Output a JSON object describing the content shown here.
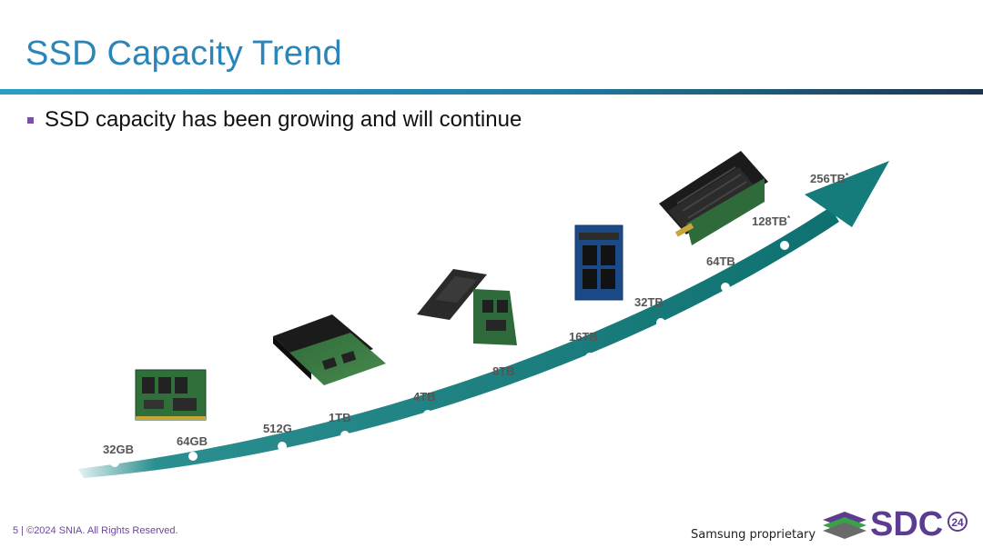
{
  "slide": {
    "title": "SSD Capacity Trend",
    "bullet": "SSD capacity has been growing and will continue"
  },
  "trend": {
    "milestones": [
      {
        "label": "32GB",
        "future": false
      },
      {
        "label": "64GB",
        "future": false
      },
      {
        "label": "512G",
        "future": false
      },
      {
        "label": "1TB",
        "future": false
      },
      {
        "label": "4TB",
        "future": false
      },
      {
        "label": "8TB",
        "future": false
      },
      {
        "label": "16TB",
        "future": false
      },
      {
        "label": "32TB",
        "future": false
      },
      {
        "label": "64TB",
        "future": false
      },
      {
        "label": "128TB",
        "future": true
      },
      {
        "label": "256TB",
        "future": true
      }
    ],
    "future_marker": "*"
  },
  "footer": {
    "copyright": "5 | ©2024 SNIA. All Rights Reserved.",
    "proprietary": "Samsung proprietary",
    "logo_text": "SDC",
    "logo_year": "24"
  },
  "colors": {
    "title": "#2a86b8",
    "arrow_teal": "#157b7b",
    "bullet": "#7c4bb3",
    "logo_green": "#3aa04a",
    "logo_purple": "#5b3c92"
  }
}
